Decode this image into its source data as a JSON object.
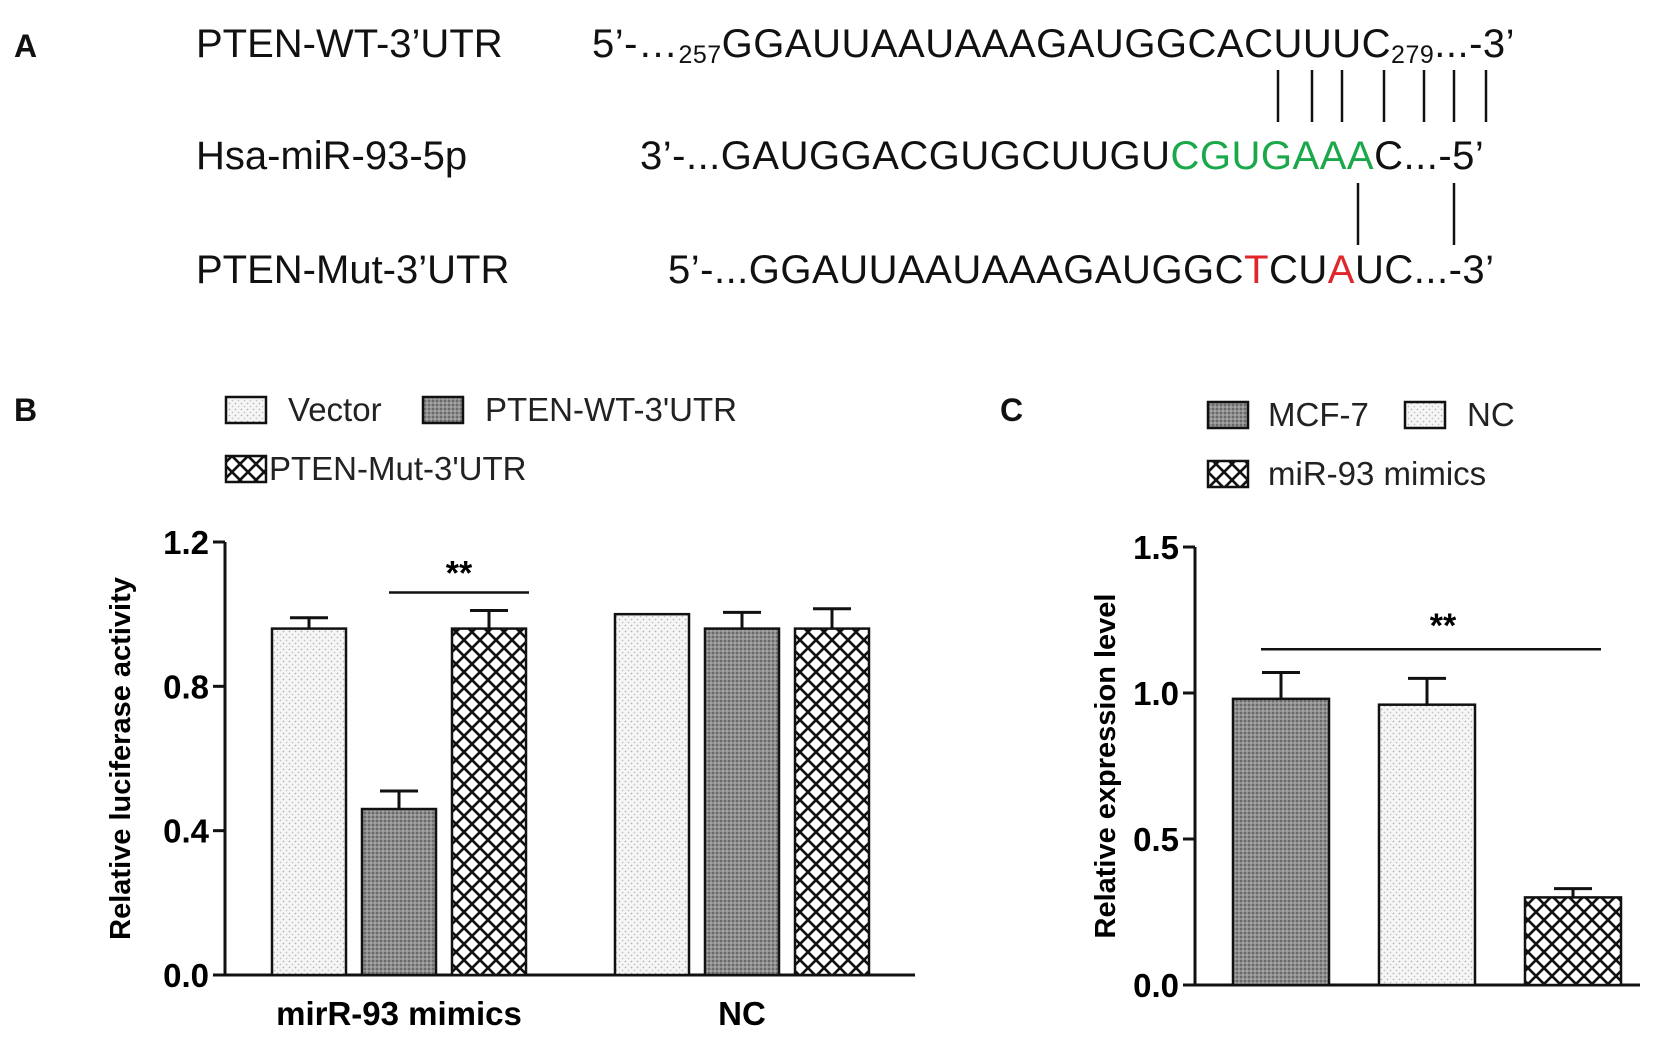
{
  "panel_a": {
    "letter": "A",
    "rows": [
      {
        "label": "PTEN-WT-3’UTR",
        "segments": [
          {
            "t": "5’-…",
            "c": "n"
          },
          {
            "t": "257",
            "c": "sub"
          },
          {
            "t": "GGAUUAAUAAAGAUGGCACUUUC",
            "c": "n"
          },
          {
            "t": "279",
            "c": "sub"
          },
          {
            "t": "...-3’",
            "c": "n"
          }
        ]
      },
      {
        "label": "Hsa-miR-93-5p",
        "segments": [
          {
            "t": "3’-...GAUGGACGUGCUUGU",
            "c": "n"
          },
          {
            "t": "CGUGAAA",
            "c": "green"
          },
          {
            "t": "C...-5’",
            "c": "n"
          }
        ]
      },
      {
        "label": "PTEN-Mut-3’UTR",
        "segments": [
          {
            "t": "5’-...GGAUUAAUAAAGAUGGC",
            "c": "n"
          },
          {
            "t": "T",
            "c": "red"
          },
          {
            "t": "CU",
            "c": "n"
          },
          {
            "t": "A",
            "c": "red"
          },
          {
            "t": "UC...-3’",
            "c": "n"
          }
        ]
      }
    ]
  },
  "chart_data": [
    {
      "panel": "B",
      "type": "bar",
      "title": "",
      "xlabel": "",
      "ylabel": "Relative  luciferase activity",
      "ylim": [
        0,
        1.2
      ],
      "yticks": [
        "0.0",
        "0.4",
        "0.8",
        "1.2"
      ],
      "categories": [
        "mirR-93 mimics",
        "NC"
      ],
      "legend_position": "top",
      "series": [
        {
          "name": "Vector",
          "pattern": "dots",
          "values": [
            0.96,
            1.0
          ],
          "errors": [
            0.03,
            0.0
          ]
        },
        {
          "name": "PTEN-WT-3'UTR",
          "pattern": "dark",
          "values": [
            0.46,
            0.96
          ],
          "errors": [
            0.05,
            0.045
          ]
        },
        {
          "name": "PTEN-Mut-3'UTR",
          "pattern": "cross",
          "values": [
            0.96,
            0.96
          ],
          "errors": [
            0.05,
            0.055
          ]
        }
      ],
      "significance": {
        "label": "**",
        "from_category": 0,
        "from_series": 1,
        "to_category": 0,
        "to_series": 2,
        "y": 1.06
      }
    },
    {
      "panel": "C",
      "type": "bar",
      "title": "",
      "xlabel": "",
      "ylabel": "Relative expression level",
      "ylim": [
        0,
        1.5
      ],
      "yticks": [
        "0.0",
        "0.5",
        "1.0",
        "1.5"
      ],
      "categories": [
        "MCF-7",
        "NC",
        "miR-93 mimics"
      ],
      "legend_position": "top",
      "series": [
        {
          "name": "MCF-7",
          "pattern": "dark",
          "value": 0.98,
          "error": 0.09
        },
        {
          "name": "NC",
          "pattern": "dots",
          "value": 0.96,
          "error": 0.09
        },
        {
          "name": "miR-93 mimics",
          "pattern": "cross",
          "value": 0.3,
          "error": 0.03
        }
      ],
      "significance": {
        "label": "**",
        "from_index": 0,
        "to_index": 2,
        "y": 1.15
      }
    }
  ]
}
